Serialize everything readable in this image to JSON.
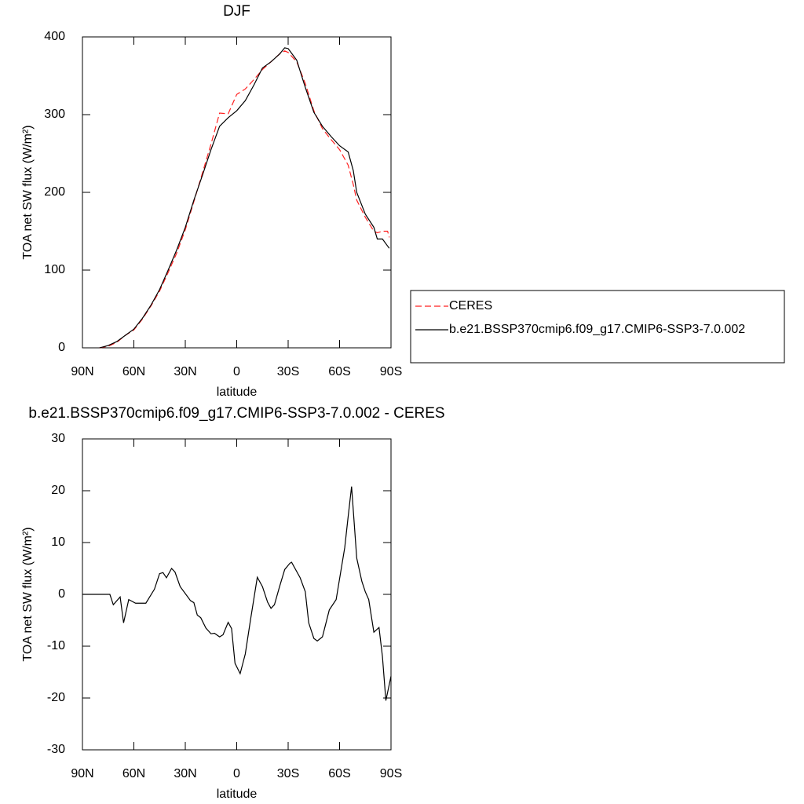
{
  "chart_data": [
    {
      "type": "line",
      "title": "DJF",
      "xlabel": "latitude",
      "ylabel": "TOA net SW flux (W/m²)",
      "x": [
        80,
        75,
        70,
        65,
        60,
        55,
        50,
        45,
        40,
        35,
        30,
        25,
        20,
        15,
        10,
        5,
        0,
        -5,
        -10,
        -15,
        -20,
        -25,
        -28,
        -30,
        -35,
        -40,
        -45,
        -50,
        -55,
        -60,
        -65,
        -68,
        -70,
        -75,
        -80,
        -82,
        -85,
        -88,
        -89
      ],
      "series": [
        {
          "name": "CERES",
          "color": "#ff2020",
          "dash": true,
          "values": [
            0,
            2,
            7,
            16,
            23,
            37,
            54,
            73,
            97,
            122,
            152,
            188,
            225,
            262,
            302,
            301,
            326,
            333,
            345,
            358,
            368,
            378,
            382,
            380,
            368,
            340,
            305,
            282,
            268,
            255,
            235,
            210,
            190,
            168,
            150,
            148,
            150,
            150,
            142
          ]
        },
        {
          "name": "b.e21.BSSP370cmip6.f09_g17.CMIP6-SSP3-7.0.002",
          "color": "#000000",
          "dash": false,
          "values": [
            0,
            3,
            8,
            16,
            24,
            38,
            55,
            75,
            100,
            126,
            155,
            190,
            222,
            255,
            285,
            296,
            305,
            318,
            338,
            360,
            368,
            378,
            386,
            385,
            370,
            335,
            303,
            285,
            272,
            260,
            252,
            228,
            200,
            172,
            155,
            140,
            140,
            131,
            128
          ]
        }
      ],
      "xlim": [
        90,
        -90
      ],
      "xticks": [
        {
          "value": 90,
          "label": "90N"
        },
        {
          "value": 60,
          "label": "60N"
        },
        {
          "value": 30,
          "label": "30N"
        },
        0,
        {
          "value": -30,
          "label": "30S"
        },
        {
          "value": -60,
          "label": "60S"
        },
        {
          "value": -90,
          "label": "90S"
        }
      ],
      "ylim": [
        0,
        400
      ],
      "yticks": [
        0,
        100,
        200,
        300,
        400
      ],
      "legend": "right"
    },
    {
      "type": "line",
      "title": "b.e21.BSSP370cmip6.f09_g17.CMIP6-SSP3-7.0.002 - CERES",
      "xlabel": "latitude",
      "ylabel": "TOA net SW flux (W/m²)",
      "x": [
        90,
        74,
        72,
        68,
        66,
        63,
        59,
        53,
        48,
        45,
        43,
        41,
        38,
        36,
        33,
        27,
        25,
        23,
        21,
        18,
        15,
        13,
        10,
        8,
        5,
        3,
        1,
        -2,
        -5,
        -8,
        -12,
        -15,
        -18,
        -20,
        -22,
        -25,
        -28,
        -31,
        -32,
        -37,
        -40,
        -42,
        -45,
        -47,
        -50,
        -54,
        -58,
        -60,
        -63,
        -65,
        -67,
        -70,
        -73,
        -75,
        -77,
        -80,
        -83,
        -85,
        -87,
        -90
      ],
      "series": [
        {
          "color": "#000000",
          "values": [
            0,
            0,
            -2,
            -0.5,
            -5.5,
            -1,
            -1.7,
            -1.7,
            1,
            4,
            4.2,
            3.2,
            5,
            4.3,
            1.5,
            -1.2,
            -1.6,
            -4,
            -4.5,
            -6.5,
            -7.6,
            -7.5,
            -8.2,
            -7.8,
            -5.4,
            -6.6,
            -13.3,
            -15.3,
            -11.5,
            -5,
            3.3,
            1.5,
            -1.5,
            -2.7,
            -2,
            1.5,
            4.8,
            6,
            6.2,
            3.2,
            0.5,
            -5.5,
            -8.5,
            -9,
            -8.2,
            -3,
            -1,
            3,
            9,
            15,
            20.8,
            7,
            2.5,
            0.5,
            -1,
            -7.3,
            -6.4,
            -12,
            -20.5,
            -15.8
          ]
        }
      ],
      "xlim": [
        90,
        -90
      ],
      "xticks": [
        {
          "value": 90,
          "label": "90N"
        },
        {
          "value": 60,
          "label": "60N"
        },
        {
          "value": 30,
          "label": "30N"
        },
        0,
        {
          "value": -30,
          "label": "30S"
        },
        {
          "value": -60,
          "label": "60S"
        },
        {
          "value": -90,
          "label": "90S"
        }
      ],
      "ylim": [
        -30,
        30
      ],
      "yticks": [
        -30,
        -20,
        -10,
        0,
        10,
        20,
        30
      ]
    }
  ]
}
